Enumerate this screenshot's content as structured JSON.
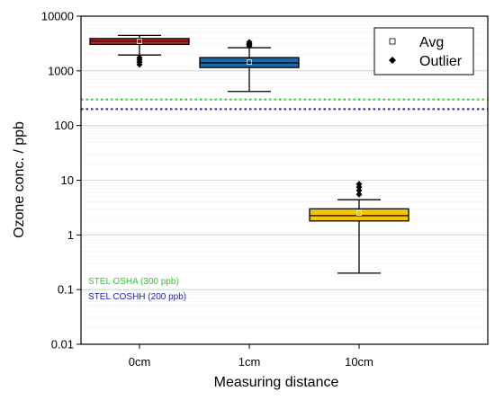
{
  "chart_data": {
    "type": "box",
    "xlabel": "Measuring distance",
    "ylabel": "Ozone conc. / ppb",
    "yscale": "log",
    "ylim": [
      0.01,
      10000
    ],
    "y_ticks": [
      0.01,
      0.1,
      1,
      10,
      100,
      1000,
      10000
    ],
    "y_tick_labels": [
      "0.01",
      "0.1",
      "1",
      "10",
      "100",
      "1000",
      "10000"
    ],
    "grid": "horizontal (major and minor), light gray",
    "legend": {
      "placement": "top-right",
      "entries": [
        {
          "label": "Avg",
          "marker": "hollow-square"
        },
        {
          "label": "Outlier",
          "marker": "filled-diamond"
        }
      ]
    },
    "categories": [
      "0cm",
      "1cm",
      "10cm"
    ],
    "boxes": [
      {
        "category": "0cm",
        "color": "#c0262c",
        "whisker_low": 1950,
        "q1": 3050,
        "median": 3500,
        "q3": 3900,
        "whisker_high": 4450,
        "avg": 3450,
        "outliers": [
          1300,
          1450,
          1600,
          1750
        ]
      },
      {
        "category": "1cm",
        "color": "#1a6aad",
        "whisker_low": 420,
        "q1": 1150,
        "median": 1400,
        "q3": 1750,
        "whisker_high": 2650,
        "avg": 1450,
        "outliers": [
          2850,
          3000,
          3150,
          3350
        ]
      },
      {
        "category": "10cm",
        "color": "#f5c400",
        "whisker_low": 0.2,
        "q1": 1.8,
        "median": 2.25,
        "q3": 3.0,
        "whisker_high": 4.4,
        "avg": 2.5,
        "outliers": [
          5.5,
          6.5,
          7.5,
          8.5
        ]
      }
    ],
    "reference_lines": [
      {
        "label": "STEL OSHA (300 ppb)",
        "value": 300,
        "color": "#2bcc2b"
      },
      {
        "label": "STEL COSHH (200 ppb)",
        "value": 200,
        "color": "#2323c8"
      }
    ]
  }
}
